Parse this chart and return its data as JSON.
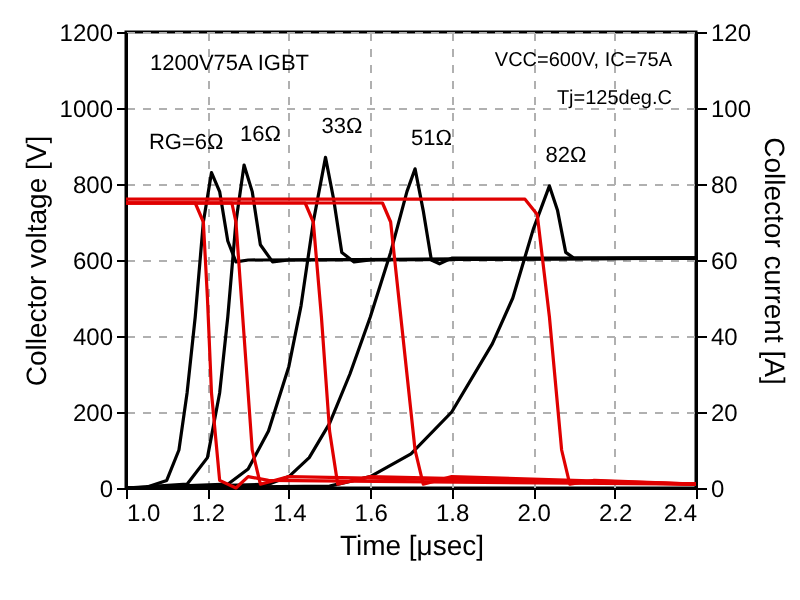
{
  "chart_data": {
    "type": "line",
    "xlabel": "Time [μsec]",
    "ylabel": "Collector voltage [V]",
    "y2label": "Collector current [A]",
    "xlim": [
      1.0,
      2.4
    ],
    "xticks": [
      {
        "value": 1.0,
        "label": "1.0"
      },
      1.2,
      1.4,
      1.6,
      1.8,
      {
        "value": 2.0,
        "label": "2.0"
      },
      2.2,
      2.4
    ],
    "ylim": [
      0,
      1200
    ],
    "yticks": [
      0,
      200,
      400,
      600,
      800,
      1000,
      1200
    ],
    "y2lim": [
      0,
      120
    ],
    "y2ticks": [
      0,
      20,
      40,
      60,
      80,
      100,
      120
    ],
    "grid": true,
    "line_style": "solid",
    "series": [
      {
        "color": "#000000",
        "x": [
          1.0,
          1.05,
          1.1,
          1.13,
          1.15,
          1.17,
          1.19,
          1.21,
          1.23,
          1.25,
          1.27,
          1.3,
          2.4
        ],
        "values": [
          0,
          2,
          20,
          100,
          250,
          450,
          700,
          830,
          780,
          650,
          595,
          600,
          605
        ]
      },
      {
        "color": "#000000",
        "x": [
          1.0,
          1.15,
          1.2,
          1.23,
          1.25,
          1.27,
          1.29,
          1.31,
          1.33,
          1.36,
          1.4,
          2.4
        ],
        "values": [
          0,
          10,
          80,
          250,
          450,
          700,
          850,
          780,
          640,
          595,
          600,
          605
        ]
      },
      {
        "color": "#000000",
        "x": [
          1.0,
          1.25,
          1.3,
          1.35,
          1.4,
          1.43,
          1.46,
          1.49,
          1.51,
          1.53,
          1.56,
          1.6,
          2.4
        ],
        "values": [
          0,
          10,
          50,
          150,
          320,
          480,
          700,
          870,
          760,
          620,
          595,
          600,
          605
        ]
      },
      {
        "color": "#000000",
        "x": [
          1.0,
          1.35,
          1.4,
          1.45,
          1.5,
          1.55,
          1.6,
          1.65,
          1.69,
          1.71,
          1.73,
          1.75,
          1.77,
          1.8,
          2.4
        ],
        "values": [
          0,
          10,
          30,
          80,
          170,
          300,
          450,
          620,
          780,
          840,
          730,
          600,
          590,
          605,
          605
        ]
      },
      {
        "color": "#000000",
        "x": [
          1.0,
          1.5,
          1.6,
          1.7,
          1.8,
          1.9,
          1.95,
          2.0,
          2.04,
          2.06,
          2.08,
          2.1,
          2.4
        ],
        "values": [
          0,
          5,
          30,
          90,
          200,
          380,
          500,
          680,
          795,
          730,
          620,
          605,
          605
        ]
      },
      {
        "color": "#e00000",
        "axis": "y2",
        "x": [
          1.0,
          1.17,
          1.19,
          1.2,
          1.21,
          1.23,
          1.27,
          1.3,
          1.35,
          2.4
        ],
        "values": [
          75,
          75,
          70,
          50,
          25,
          2,
          0,
          3,
          2,
          1
        ]
      },
      {
        "color": "#e00000",
        "axis": "y2",
        "x": [
          1.0,
          1.26,
          1.27,
          1.29,
          1.31,
          1.33,
          1.4,
          2.4
        ],
        "values": [
          75,
          75,
          70,
          40,
          10,
          1,
          3,
          1
        ]
      },
      {
        "color": "#e00000",
        "axis": "y2",
        "x": [
          1.0,
          1.44,
          1.46,
          1.48,
          1.5,
          1.52,
          1.6,
          2.4
        ],
        "values": [
          75,
          75,
          70,
          45,
          15,
          1,
          3,
          1
        ]
      },
      {
        "color": "#e00000",
        "axis": "y2",
        "x": [
          1.0,
          1.63,
          1.65,
          1.68,
          1.71,
          1.73,
          1.8,
          2.4
        ],
        "values": [
          75,
          75,
          70,
          40,
          10,
          1,
          3,
          1
        ]
      },
      {
        "color": "#e00000",
        "axis": "y2",
        "x": [
          1.0,
          1.98,
          2.01,
          2.04,
          2.07,
          2.09,
          2.15,
          2.4
        ],
        "values": [
          76,
          76,
          72,
          45,
          10,
          1,
          2,
          1
        ]
      }
    ],
    "annotations": [
      "1200V75A IGBT",
      "VCC=600V, IC=75A",
      "Tj=125deg.C",
      {
        "text": "RG=6Ω",
        "x": 1.21,
        "y": 830
      },
      {
        "text": "16Ω",
        "x": 1.29,
        "y": 850
      },
      {
        "text": "33Ω",
        "x": 1.49,
        "y": 870
      },
      {
        "text": "51Ω",
        "x": 1.71,
        "y": 840
      },
      {
        "text": "82Ω",
        "x": 2.04,
        "y": 795
      }
    ]
  }
}
